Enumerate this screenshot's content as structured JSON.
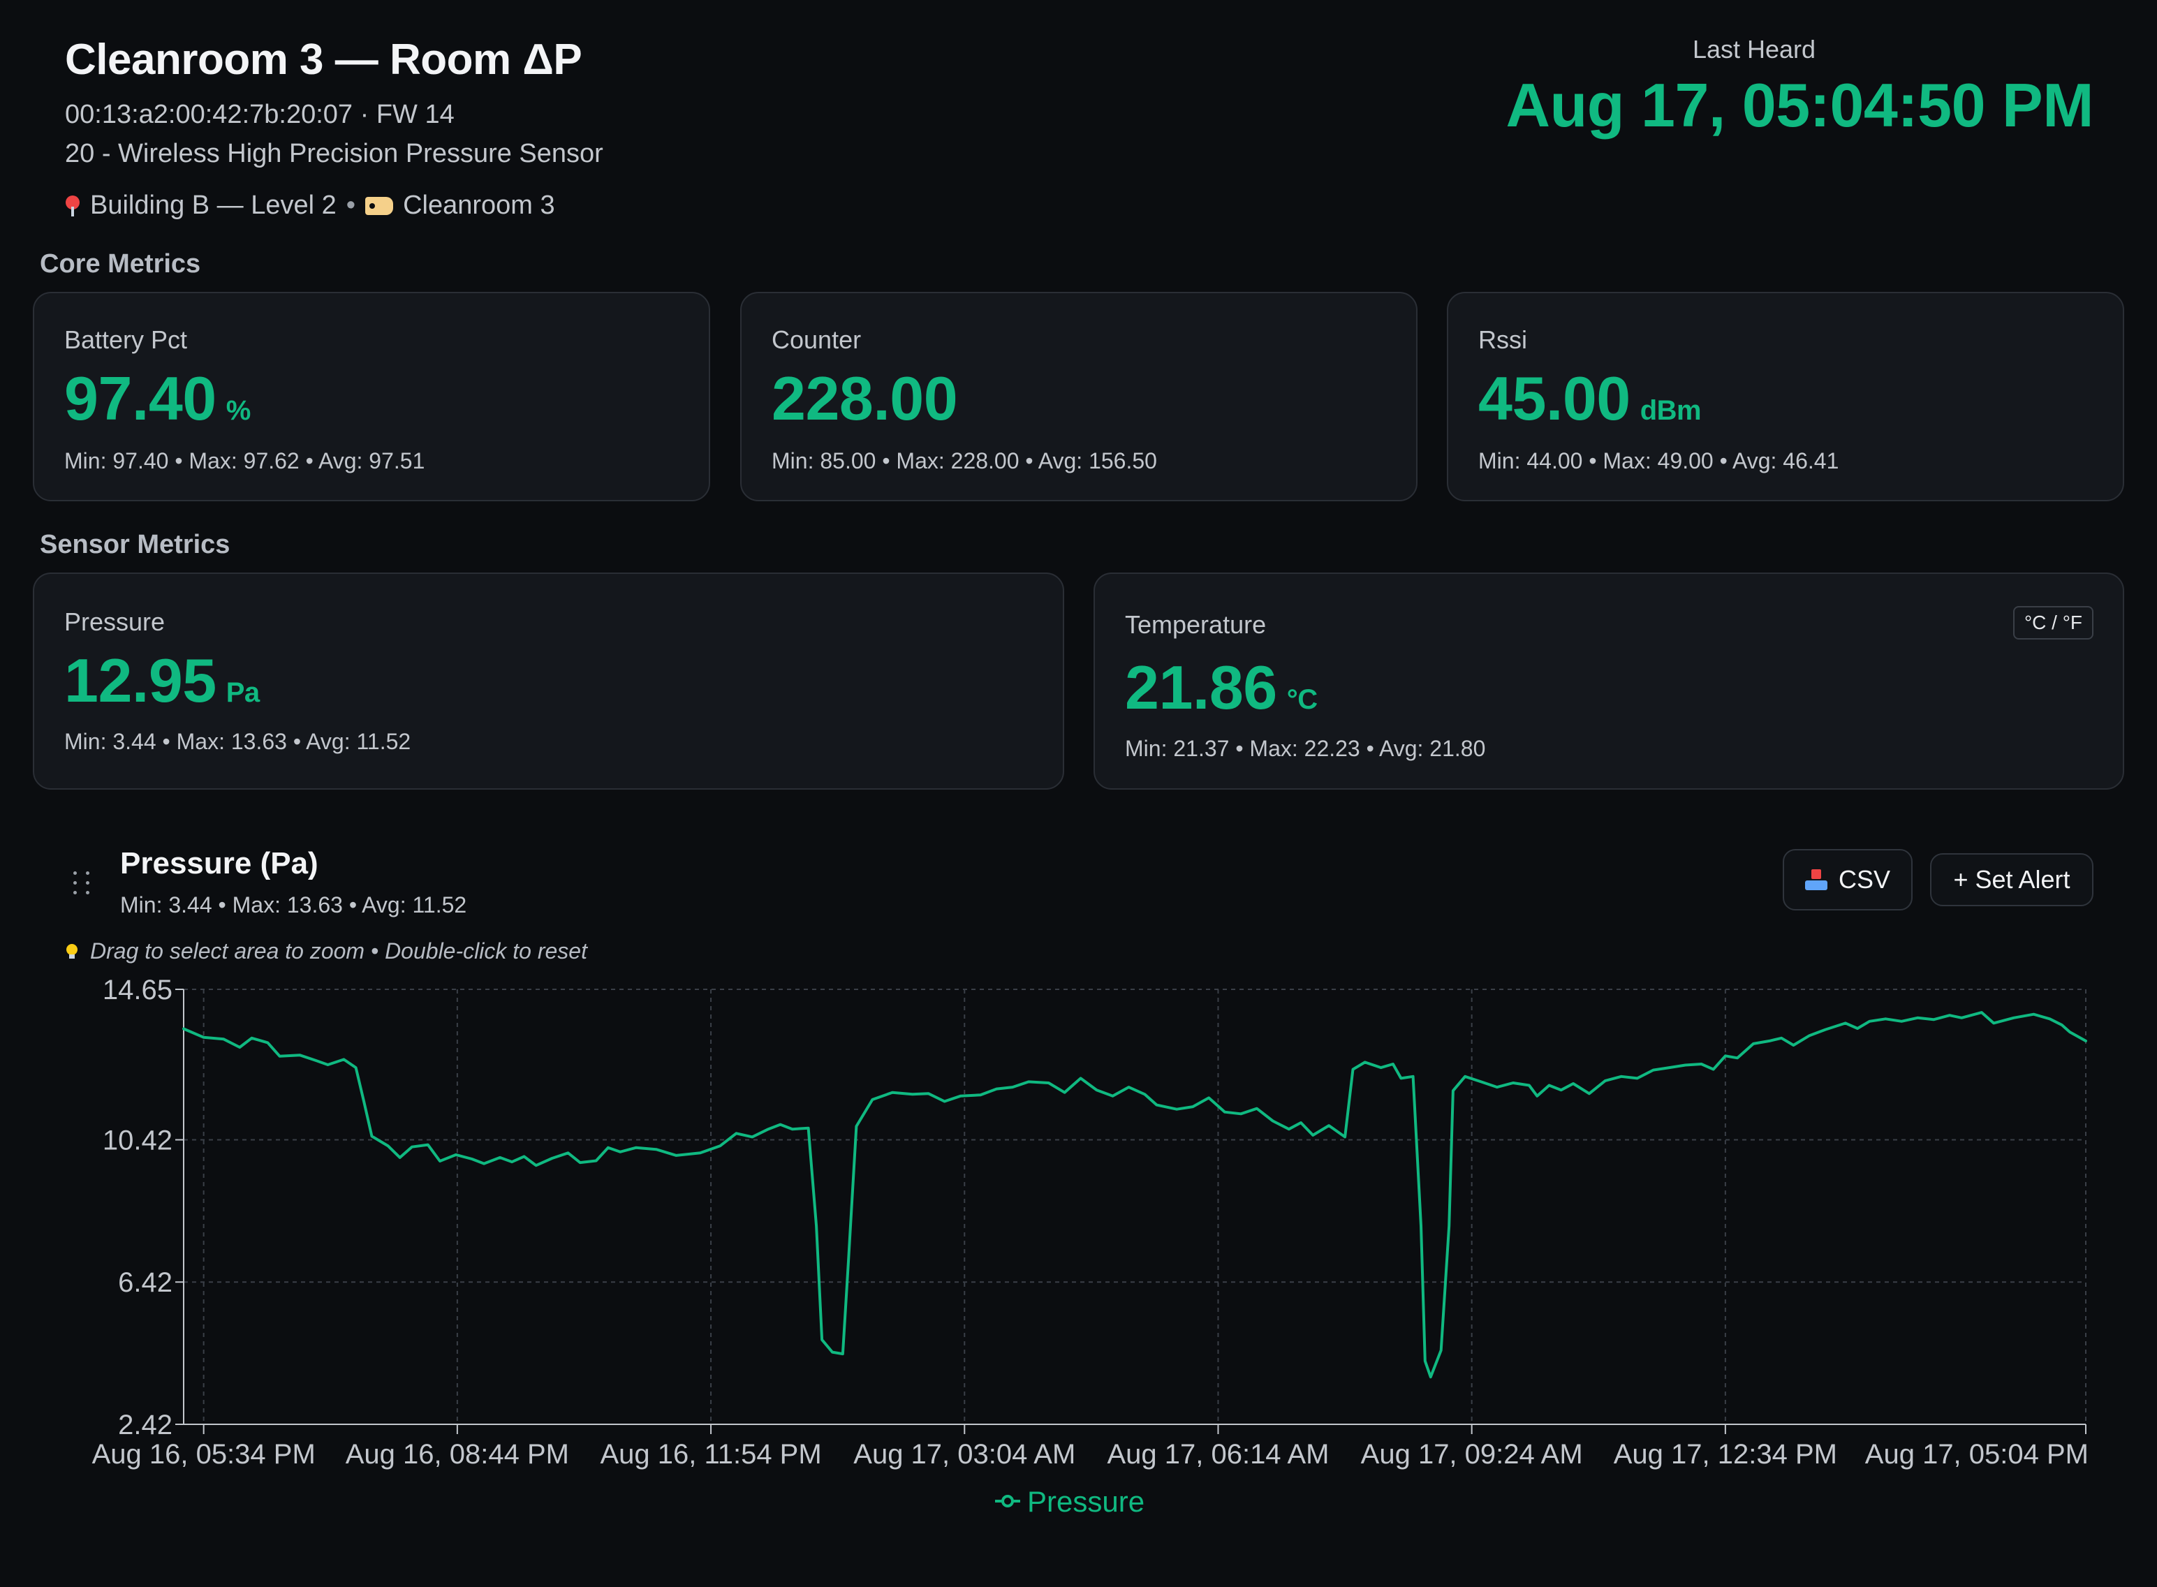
{
  "header": {
    "title": "Cleanroom 3 — Room ΔP",
    "meta": "00:13:a2:00:42:7b:20:07 · FW 14",
    "device_type": "20 - Wireless High Precision Pressure Sensor",
    "location": "Building B — Level 2",
    "location_icon": "pin-icon",
    "separator": "•",
    "tag": "Cleanroom 3",
    "tag_icon": "label-tag-icon",
    "last_heard_label": "Last Heard",
    "last_heard_value": "Aug 17, 05:04:50 PM"
  },
  "sections": {
    "core": "Core Metrics",
    "sensor": "Sensor Metrics"
  },
  "core_metrics": [
    {
      "label": "Battery Pct",
      "value": "97.40",
      "unit": "%",
      "stats": "Min: 97.40 • Max: 97.62 • Avg: 97.51"
    },
    {
      "label": "Counter",
      "value": "228.00",
      "unit": "",
      "stats": "Min: 85.00 • Max: 228.00 • Avg: 156.50"
    },
    {
      "label": "Rssi",
      "value": "45.00",
      "unit": "dBm",
      "stats": "Min: 44.00 • Max: 49.00 • Avg: 46.41"
    }
  ],
  "sensor_metrics": [
    {
      "label": "Pressure",
      "value": "12.95",
      "unit": "Pa",
      "stats": "Min: 3.44 • Max: 13.63 • Avg: 11.52"
    },
    {
      "label": "Temperature",
      "value": "21.86",
      "unit": "°C",
      "stats": "Min: 21.37 • Max: 22.23 • Avg: 21.80",
      "toggle": "°C / °F"
    }
  ],
  "chart_panel": {
    "title": "Pressure (Pa)",
    "stats": "Min: 3.44 • Max: 13.63 • Avg: 11.52",
    "hint": "Drag to select area to zoom • Double-click to reset",
    "hint_icon": "lightbulb-icon",
    "csv_label": "CSV",
    "csv_icon": "inbox-tray-icon",
    "alert_label": "+ Set Alert",
    "accent": "#10b981"
  },
  "chart_data": {
    "type": "line",
    "title": "",
    "xlabel": "",
    "ylabel": "",
    "ylim": [
      2.42,
      14.65
    ],
    "yticks": [
      "2.42",
      "6.42",
      "10.42",
      "14.65"
    ],
    "xticks": [
      "Aug 16, 05:34 PM",
      "Aug 16, 08:44 PM",
      "Aug 16, 11:54 PM",
      "Aug 17, 03:04 AM",
      "Aug 17, 06:14 AM",
      "Aug 17, 09:24 AM",
      "Aug 17, 12:34 PM",
      "Aug 17, 05:04 PM"
    ],
    "x_span_hours": [
      -0.25,
      23.5
    ],
    "grid": true,
    "legend": "bottom-center",
    "series": [
      {
        "name": "Pressure",
        "color": "#10b981",
        "points": [
          [
            -0.25,
            13.54
          ],
          [
            0.0,
            13.3
          ],
          [
            0.25,
            13.25
          ],
          [
            0.45,
            13.02
          ],
          [
            0.6,
            13.28
          ],
          [
            0.8,
            13.15
          ],
          [
            0.95,
            12.77
          ],
          [
            1.2,
            12.8
          ],
          [
            1.4,
            12.65
          ],
          [
            1.55,
            12.53
          ],
          [
            1.75,
            12.68
          ],
          [
            1.9,
            12.45
          ],
          [
            2.0,
            11.5
          ],
          [
            2.1,
            10.52
          ],
          [
            2.3,
            10.25
          ],
          [
            2.45,
            9.92
          ],
          [
            2.6,
            10.22
          ],
          [
            2.8,
            10.28
          ],
          [
            2.95,
            9.82
          ],
          [
            3.15,
            10.0
          ],
          [
            3.35,
            9.88
          ],
          [
            3.5,
            9.75
          ],
          [
            3.7,
            9.92
          ],
          [
            3.85,
            9.8
          ],
          [
            4.0,
            9.95
          ],
          [
            4.15,
            9.7
          ],
          [
            4.35,
            9.9
          ],
          [
            4.55,
            10.05
          ],
          [
            4.7,
            9.78
          ],
          [
            4.9,
            9.83
          ],
          [
            5.05,
            10.2
          ],
          [
            5.2,
            10.08
          ],
          [
            5.4,
            10.2
          ],
          [
            5.65,
            10.15
          ],
          [
            5.9,
            9.98
          ],
          [
            6.2,
            10.05
          ],
          [
            6.45,
            10.25
          ],
          [
            6.65,
            10.6
          ],
          [
            6.85,
            10.5
          ],
          [
            7.05,
            10.72
          ],
          [
            7.2,
            10.85
          ],
          [
            7.35,
            10.72
          ],
          [
            7.55,
            10.75
          ],
          [
            7.65,
            8.0
          ],
          [
            7.72,
            4.8
          ],
          [
            7.85,
            4.45
          ],
          [
            7.98,
            4.4
          ],
          [
            8.05,
            7.0
          ],
          [
            8.15,
            10.8
          ],
          [
            8.35,
            11.55
          ],
          [
            8.6,
            11.75
          ],
          [
            8.85,
            11.7
          ],
          [
            9.05,
            11.72
          ],
          [
            9.25,
            11.5
          ],
          [
            9.45,
            11.65
          ],
          [
            9.7,
            11.68
          ],
          [
            9.9,
            11.85
          ],
          [
            10.1,
            11.9
          ],
          [
            10.3,
            12.05
          ],
          [
            10.55,
            12.02
          ],
          [
            10.75,
            11.75
          ],
          [
            10.95,
            12.15
          ],
          [
            11.15,
            11.82
          ],
          [
            11.35,
            11.65
          ],
          [
            11.55,
            11.9
          ],
          [
            11.75,
            11.7
          ],
          [
            11.9,
            11.4
          ],
          [
            12.15,
            11.28
          ],
          [
            12.35,
            11.35
          ],
          [
            12.55,
            11.6
          ],
          [
            12.75,
            11.2
          ],
          [
            12.95,
            11.15
          ],
          [
            13.15,
            11.3
          ],
          [
            13.35,
            10.95
          ],
          [
            13.55,
            10.72
          ],
          [
            13.7,
            10.9
          ],
          [
            13.85,
            10.55
          ],
          [
            14.05,
            10.82
          ],
          [
            14.25,
            10.5
          ],
          [
            14.35,
            12.4
          ],
          [
            14.5,
            12.6
          ],
          [
            14.7,
            12.45
          ],
          [
            14.85,
            12.55
          ],
          [
            14.95,
            12.15
          ],
          [
            15.1,
            12.2
          ],
          [
            15.2,
            8.0
          ],
          [
            15.25,
            4.2
          ],
          [
            15.32,
            3.75
          ],
          [
            15.45,
            4.5
          ],
          [
            15.55,
            8.0
          ],
          [
            15.6,
            11.8
          ],
          [
            15.75,
            12.2
          ],
          [
            15.95,
            12.05
          ],
          [
            16.15,
            11.9
          ],
          [
            16.35,
            12.02
          ],
          [
            16.55,
            11.95
          ],
          [
            16.65,
            11.65
          ],
          [
            16.8,
            11.95
          ],
          [
            16.95,
            11.82
          ],
          [
            17.1,
            12.0
          ],
          [
            17.3,
            11.72
          ],
          [
            17.5,
            12.08
          ],
          [
            17.7,
            12.2
          ],
          [
            17.9,
            12.15
          ],
          [
            18.1,
            12.38
          ],
          [
            18.3,
            12.45
          ],
          [
            18.5,
            12.52
          ],
          [
            18.7,
            12.55
          ],
          [
            18.85,
            12.4
          ],
          [
            19.0,
            12.78
          ],
          [
            19.15,
            12.72
          ],
          [
            19.35,
            13.12
          ],
          [
            19.55,
            13.2
          ],
          [
            19.7,
            13.28
          ],
          [
            19.85,
            13.08
          ],
          [
            20.05,
            13.35
          ],
          [
            20.25,
            13.52
          ],
          [
            20.5,
            13.7
          ],
          [
            20.65,
            13.55
          ],
          [
            20.8,
            13.75
          ],
          [
            21.0,
            13.82
          ],
          [
            21.2,
            13.75
          ],
          [
            21.4,
            13.85
          ],
          [
            21.6,
            13.8
          ],
          [
            21.8,
            13.92
          ],
          [
            21.95,
            13.85
          ],
          [
            22.2,
            14.0
          ],
          [
            22.35,
            13.7
          ],
          [
            22.6,
            13.85
          ],
          [
            22.85,
            13.95
          ],
          [
            23.05,
            13.82
          ],
          [
            23.2,
            13.65
          ],
          [
            23.3,
            13.45
          ],
          [
            23.5,
            13.2
          ]
        ]
      }
    ]
  }
}
